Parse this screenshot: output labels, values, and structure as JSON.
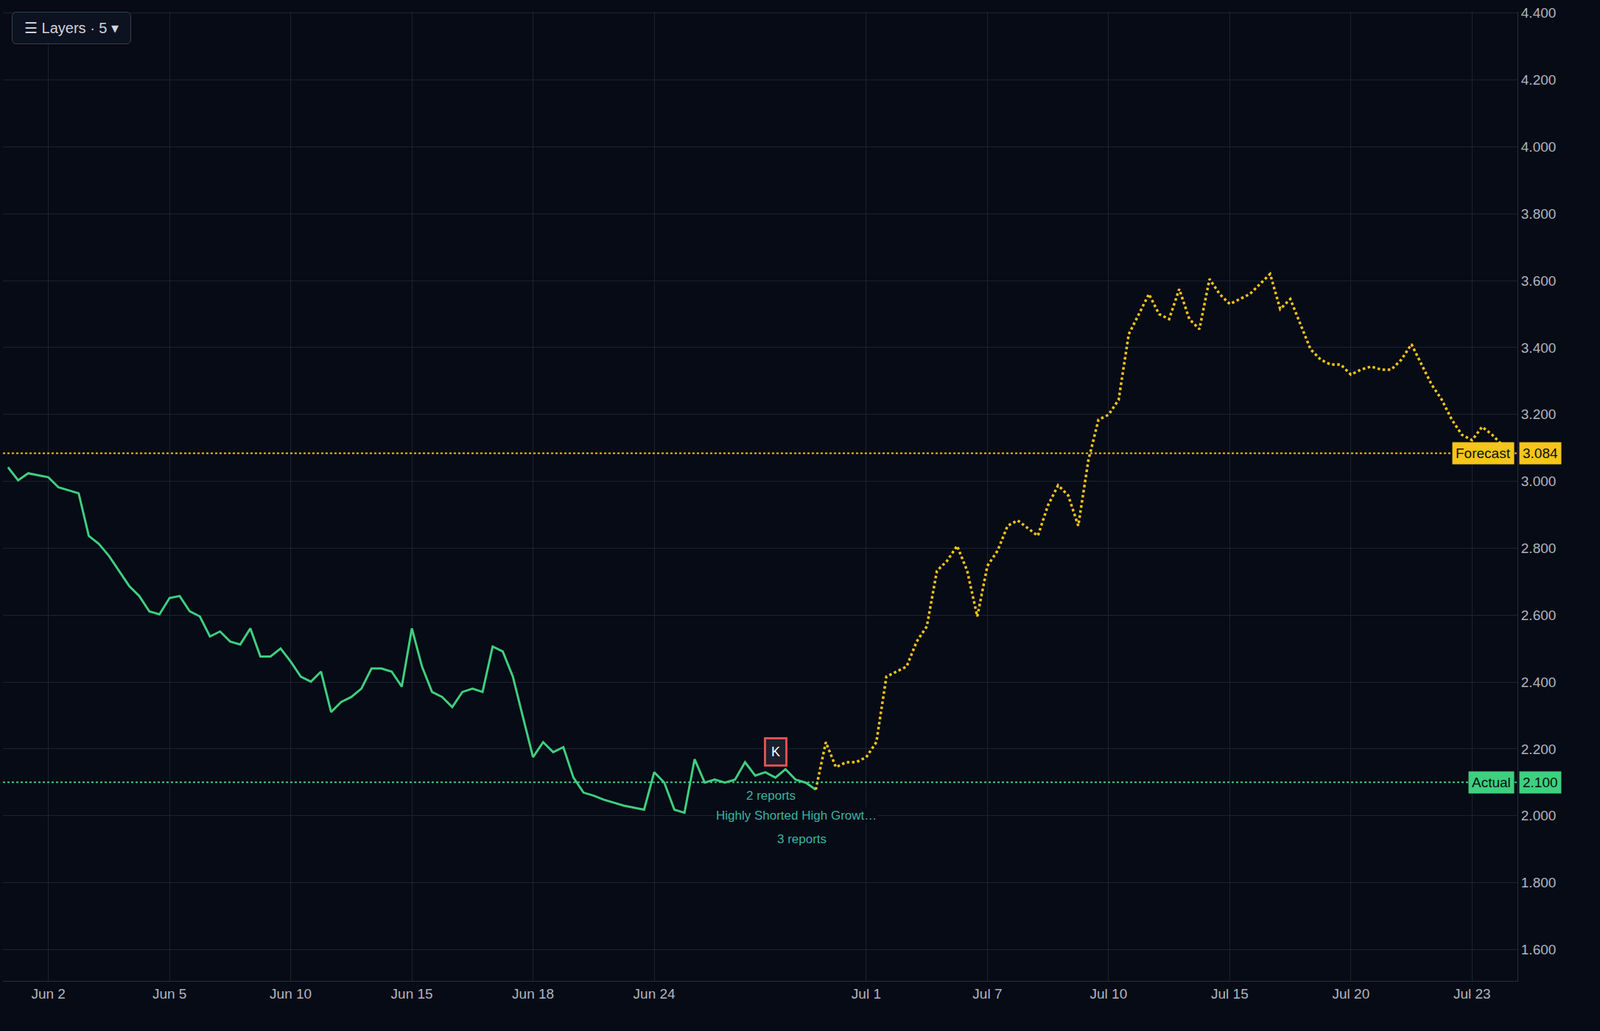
{
  "chart_data": {
    "type": "line",
    "ui_text": "☰ Layers · 5 ▾",
    "grid": true,
    "categories": [
      null,
      null,
      null,
      null,
      "Jun 2",
      null,
      null,
      null,
      null,
      null,
      null,
      null,
      null,
      null,
      null,
      null,
      "Jun 5",
      null,
      null,
      null,
      null,
      null,
      null,
      null,
      null,
      null,
      null,
      null,
      "Jun 10",
      null,
      null,
      null,
      null,
      null,
      null,
      null,
      null,
      null,
      null,
      null,
      "Jun 15",
      null,
      null,
      null,
      null,
      null,
      null,
      null,
      null,
      null,
      null,
      null,
      "Jun 18",
      null,
      null,
      null,
      null,
      null,
      null,
      null,
      null,
      null,
      null,
      null,
      "Jun 24",
      null,
      null,
      null,
      null,
      null,
      null,
      null,
      null,
      null,
      null,
      null,
      null,
      null,
      null,
      null,
      null,
      null,
      null,
      null,
      null,
      "Jul 1",
      null,
      null,
      null,
      null,
      null,
      null,
      null,
      null,
      null,
      null,
      null,
      "Jul 7",
      null,
      null,
      null,
      null,
      null,
      null,
      null,
      null,
      null,
      null,
      null,
      "Jul 10",
      null,
      null,
      null,
      null,
      null,
      null,
      null,
      null,
      null,
      null,
      null,
      "Jul 15",
      null,
      null,
      null,
      null,
      null,
      null,
      null,
      null,
      null,
      null,
      null,
      "Jul 20",
      null,
      null,
      null,
      null,
      null,
      null,
      null,
      null,
      null,
      null,
      null,
      "Jul 23",
      null,
      null,
      null,
      null
    ],
    "series": [
      {
        "name": "Actual",
        "color": "#3fcf7f",
        "line_style": "solid",
        "values": [
          3.042,
          3.003,
          3.024,
          3.018,
          3.012,
          2.982,
          2.973,
          2.964,
          2.837,
          2.813,
          2.777,
          2.732,
          2.687,
          2.657,
          2.611,
          2.602,
          2.651,
          2.657,
          2.611,
          2.596,
          2.536,
          2.551,
          2.521,
          2.512,
          2.56,
          2.476,
          2.476,
          2.5,
          2.461,
          2.416,
          2.401,
          2.431,
          2.31,
          2.34,
          2.355,
          2.38,
          2.44,
          2.44,
          2.431,
          2.386,
          2.56,
          2.446,
          2.37,
          2.355,
          2.325,
          2.37,
          2.38,
          2.37,
          2.506,
          2.491,
          2.416,
          2.295,
          2.175,
          2.22,
          2.19,
          2.205,
          2.114,
          2.069,
          2.06,
          2.048,
          2.039,
          2.03,
          2.024,
          2.018,
          2.13,
          2.099,
          2.018,
          2.009,
          2.169,
          2.099,
          2.108,
          2.099,
          2.108,
          2.16,
          2.12,
          2.13,
          2.114,
          2.139,
          2.108,
          2.099,
          2.078,
          null,
          null,
          null,
          null,
          null,
          null,
          null,
          null,
          null,
          null,
          null,
          null,
          null,
          null,
          null,
          null,
          null,
          null,
          null,
          null,
          null,
          null,
          null,
          null,
          null,
          null,
          null,
          null,
          null,
          null,
          null,
          null,
          null,
          null,
          null,
          null,
          null,
          null,
          null,
          null,
          null,
          null,
          null,
          null,
          null,
          null,
          null,
          null,
          null,
          null,
          null,
          null,
          null,
          null,
          null,
          null,
          null,
          null,
          null,
          null,
          null,
          null,
          null,
          null,
          null,
          null,
          null,
          null,
          null
        ]
      },
      {
        "name": "Forecast",
        "color": "#f5c518",
        "line_style": "dotted",
        "values": [
          null,
          null,
          null,
          null,
          null,
          null,
          null,
          null,
          null,
          null,
          null,
          null,
          null,
          null,
          null,
          null,
          null,
          null,
          null,
          null,
          null,
          null,
          null,
          null,
          null,
          null,
          null,
          null,
          null,
          null,
          null,
          null,
          null,
          null,
          null,
          null,
          null,
          null,
          null,
          null,
          null,
          null,
          null,
          null,
          null,
          null,
          null,
          null,
          null,
          null,
          null,
          null,
          null,
          null,
          null,
          null,
          null,
          null,
          null,
          null,
          null,
          null,
          null,
          null,
          null,
          null,
          null,
          null,
          null,
          null,
          null,
          null,
          null,
          null,
          null,
          null,
          null,
          null,
          null,
          null,
          2.078,
          2.22,
          2.145,
          2.16,
          2.16,
          2.175,
          2.22,
          2.416,
          2.431,
          2.446,
          2.521,
          2.566,
          2.732,
          2.762,
          2.807,
          2.732,
          2.596,
          2.747,
          2.792,
          2.867,
          2.883,
          2.861,
          2.837,
          2.928,
          2.988,
          2.958,
          2.867,
          3.063,
          3.184,
          3.199,
          3.244,
          3.44,
          3.5,
          3.56,
          3.5,
          3.485,
          3.575,
          3.485,
          3.455,
          3.605,
          3.56,
          3.53,
          3.545,
          3.56,
          3.59,
          3.62,
          3.515,
          3.545,
          3.47,
          3.395,
          3.364,
          3.349,
          3.349,
          3.319,
          3.334,
          3.343,
          3.334,
          3.334,
          3.364,
          3.41,
          3.349,
          3.289,
          3.244,
          3.184,
          3.139,
          3.123,
          3.163,
          3.139,
          3.108,
          null
        ]
      }
    ],
    "reference_lines": [
      {
        "name": "Forecast",
        "value": 3.084,
        "label": "3.084",
        "color": "#f5c518"
      },
      {
        "name": "Actual",
        "value": 2.1,
        "label": "2.100",
        "color": "#3fcf7f"
      }
    ],
    "notes": [
      {
        "text": "2 reports",
        "x": 73,
        "y": 2.06
      },
      {
        "text": "Highly Shorted High Growt…",
        "x": 70,
        "y": 2.0
      },
      {
        "text": "3 reports",
        "x": 76,
        "y": 1.93
      }
    ],
    "badge": {
      "text": "K",
      "x": 76,
      "y": 2.19
    },
    "ylim": [
      1.506,
      4.404
    ],
    "yticks": [
      {
        "value": 1.6,
        "label": "1.600"
      },
      {
        "value": 1.8,
        "label": "1.800"
      },
      {
        "value": 2.0,
        "label": "2.000"
      },
      {
        "value": 2.2,
        "label": "2.200"
      },
      {
        "value": 2.4,
        "label": "2.400"
      },
      {
        "value": 2.6,
        "label": "2.600"
      },
      {
        "value": 2.8,
        "label": "2.800"
      },
      {
        "value": 3.0,
        "label": "3.000"
      },
      {
        "value": 3.2,
        "label": "3.200"
      },
      {
        "value": 3.4,
        "label": "3.400"
      },
      {
        "value": 3.6,
        "label": "3.600"
      },
      {
        "value": 3.8,
        "label": "3.800"
      },
      {
        "value": 4.0,
        "label": "4.000"
      },
      {
        "value": 4.2,
        "label": "4.200"
      },
      {
        "value": 4.4,
        "label": "4.400"
      }
    ]
  }
}
